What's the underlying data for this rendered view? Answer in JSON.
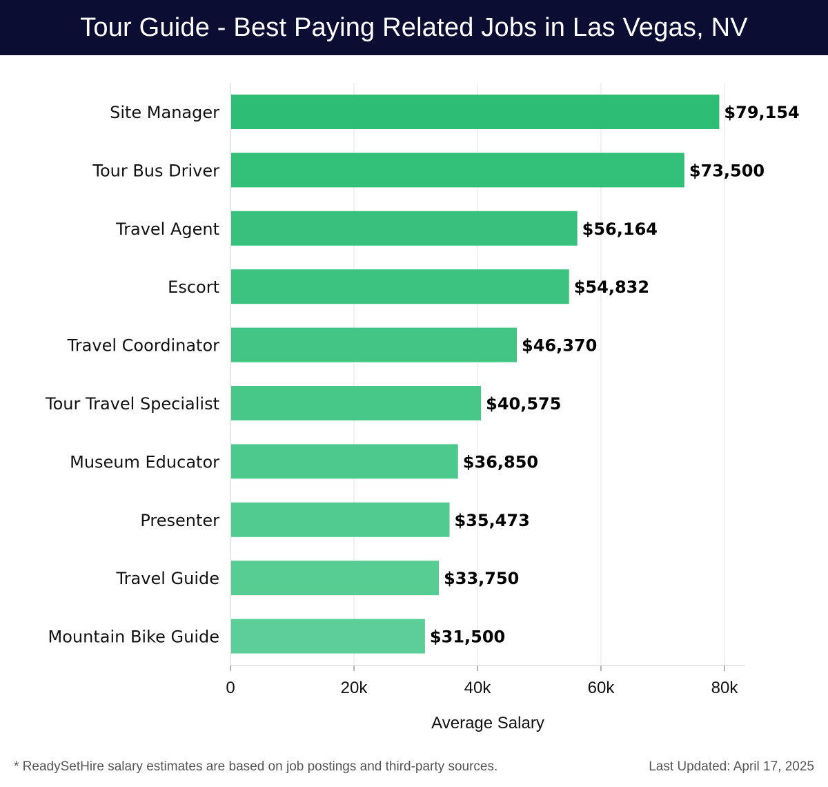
{
  "header": {
    "title": "Tour Guide - Best Paying Related Jobs in Las Vegas, NV"
  },
  "footer": {
    "note": "* ReadySetHire salary estimates are based on job postings and third-party sources.",
    "updated": "Last Updated: April 17, 2025"
  },
  "colors": {
    "header_bg": "#0c0d33",
    "bar_top": "#2dbd74",
    "bar_bottom": "#5ccf98"
  },
  "chart_data": {
    "type": "bar",
    "orientation": "horizontal",
    "categories": [
      "Site Manager",
      "Tour Bus Driver",
      "Travel Agent",
      "Escort",
      "Travel Coordinator",
      "Tour Travel Specialist",
      "Museum Educator",
      "Presenter",
      "Travel Guide",
      "Mountain Bike Guide"
    ],
    "values": [
      79154,
      73500,
      56164,
      54832,
      46370,
      40575,
      36850,
      35473,
      33750,
      31500
    ],
    "value_labels": [
      "$79,154",
      "$73,500",
      "$56,164",
      "$54,832",
      "$46,370",
      "$40,575",
      "$36,850",
      "$35,473",
      "$33,750",
      "$31,500"
    ],
    "xlabel": "Average Salary",
    "ylabel": "",
    "xlim": [
      0,
      83000
    ],
    "xticks": [
      0,
      20000,
      40000,
      60000,
      80000
    ],
    "xtick_labels": [
      "0",
      "20k",
      "40k",
      "60k",
      "80k"
    ],
    "grid": true
  }
}
